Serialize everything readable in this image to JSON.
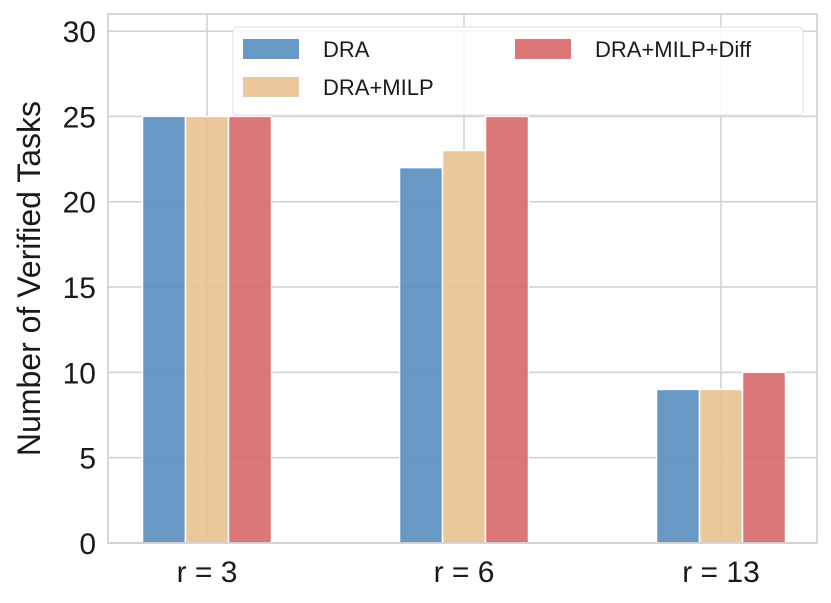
{
  "chart_data": {
    "type": "bar",
    "title": "",
    "xlabel": "",
    "ylabel": "Number of Verified Tasks",
    "categories": [
      "r = 3",
      "r = 6",
      "r = 13"
    ],
    "series": [
      {
        "name": "DRA",
        "color": "#5b8fbf",
        "values": [
          25,
          22,
          9
        ]
      },
      {
        "name": "DRA+MILP",
        "color": "#e9c392",
        "values": [
          25,
          23,
          9
        ]
      },
      {
        "name": "DRA+MILP+Diff",
        "color": "#d86b6e",
        "values": [
          25,
          25,
          10
        ]
      }
    ],
    "ylim": [
      0,
      31
    ],
    "yticks": [
      0,
      5,
      10,
      15,
      20,
      25,
      30
    ],
    "grid": true,
    "legend_position": "top-right",
    "legend_columns": 2
  },
  "colors": {
    "grid": "#cfcfcf",
    "frame": "#cccccc",
    "bar_edge": "#ffffff"
  }
}
